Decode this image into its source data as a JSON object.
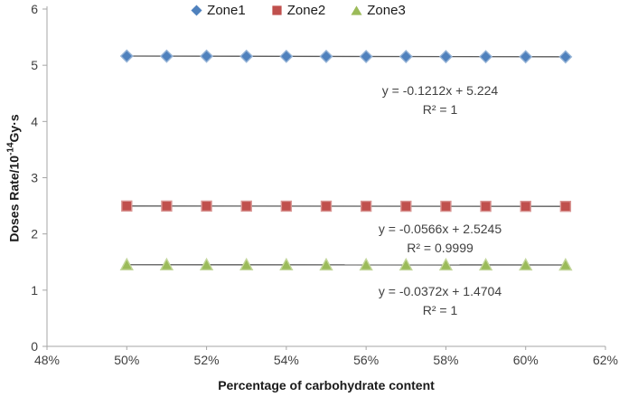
{
  "chart_data": {
    "type": "scatter",
    "title": "",
    "xlabel": "Percentage of carbohydrate content",
    "ylabel": "Doses Rate/10⁻¹⁴Gy·s",
    "ylabel_parts": {
      "prefix": "Doses Rate/10",
      "sup": "-14",
      "suffix": "Gy·s"
    },
    "xlim": [
      48,
      62
    ],
    "ylim": [
      0,
      6
    ],
    "x_ticks": [
      "48%",
      "50%",
      "52%",
      "54%",
      "56%",
      "58%",
      "60%",
      "62%"
    ],
    "x_tick_values": [
      48,
      50,
      52,
      54,
      56,
      58,
      60,
      62
    ],
    "y_ticks": [
      0,
      1,
      2,
      3,
      4,
      5,
      6
    ],
    "x_percent": [
      50,
      51,
      52,
      53,
      54,
      55,
      56,
      57,
      58,
      59,
      60,
      61
    ],
    "grid": false,
    "legend_position": "top-center",
    "axis_color": "#a6a6a6",
    "trendline_color": "#595959",
    "series": [
      {
        "name": "Zone1",
        "marker": "diamond",
        "color": "#4F81BD",
        "border_color": "#95B3D7",
        "values": [
          5.1634,
          5.1622,
          5.161,
          5.1598,
          5.1585,
          5.1573,
          5.1561,
          5.1549,
          5.1537,
          5.1525,
          5.1513,
          5.1501
        ],
        "trendline": {
          "equation": "y = -0.1212x + 5.224",
          "r2": "R² = 1",
          "slope": -0.1212,
          "intercept": 5.224
        }
      },
      {
        "name": "Zone2",
        "marker": "square",
        "color": "#C0504D",
        "border_color": "#D99694",
        "values": [
          2.4962,
          2.4956,
          2.4951,
          2.4945,
          2.4939,
          2.4934,
          2.4928,
          2.4922,
          2.4917,
          2.4911,
          2.4905,
          2.49
        ],
        "trendline": {
          "equation": "y = -0.0566x + 2.5245",
          "r2": "R² = 0.9999",
          "slope": -0.0566,
          "intercept": 2.5245
        }
      },
      {
        "name": "Zone3",
        "marker": "triangle",
        "color": "#9BBB59",
        "border_color": "#C3D69B",
        "values": [
          1.4518,
          1.4514,
          1.4511,
          1.4507,
          1.4503,
          1.4499,
          1.4496,
          1.4492,
          1.4488,
          1.4484,
          1.4481,
          1.4477
        ],
        "trendline": {
          "equation": "y = -0.0372x + 1.4704",
          "r2": "R² = 1",
          "slope": -0.0372,
          "intercept": 1.4704
        }
      }
    ]
  }
}
